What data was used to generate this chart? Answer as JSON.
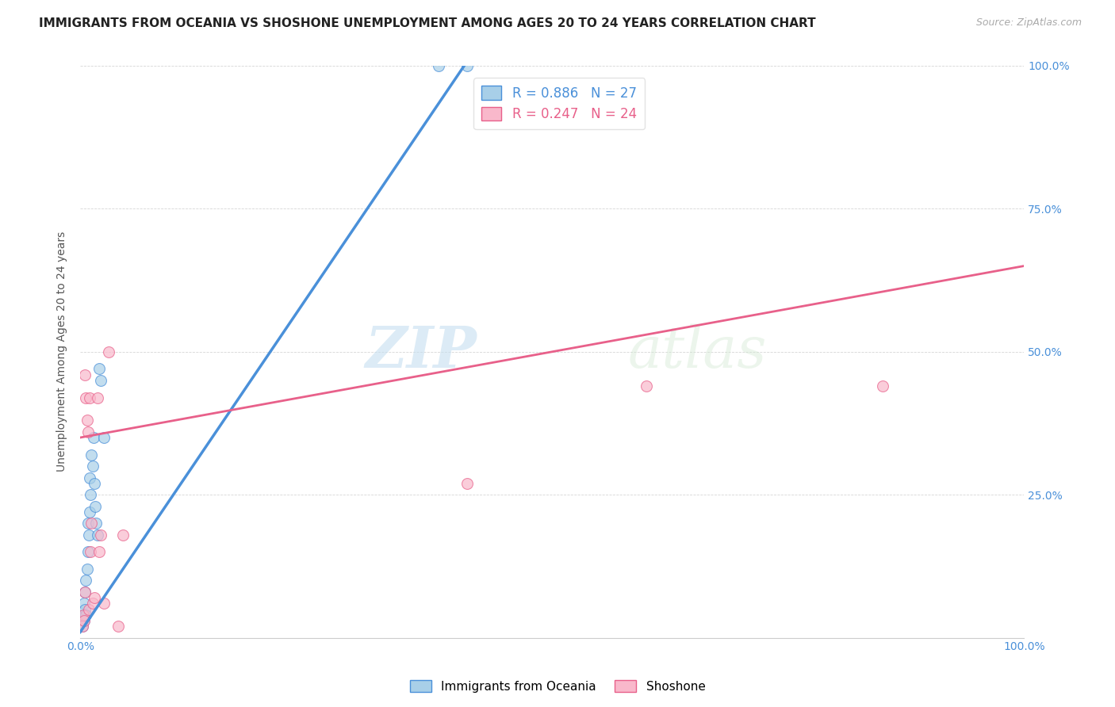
{
  "title": "IMMIGRANTS FROM OCEANIA VS SHOSHONE UNEMPLOYMENT AMONG AGES 20 TO 24 YEARS CORRELATION CHART",
  "source": "Source: ZipAtlas.com",
  "ylabel": "Unemployment Among Ages 20 to 24 years",
  "xlim": [
    0,
    1.0
  ],
  "ylim": [
    0,
    1.0
  ],
  "xtick_labels": [
    "0.0%",
    "",
    "",
    "",
    "",
    "100.0%"
  ],
  "xtick_positions": [
    0,
    0.2,
    0.4,
    0.6,
    0.8,
    1.0
  ],
  "ytick_labels_right": [
    "",
    "25.0%",
    "50.0%",
    "75.0%",
    "100.0%"
  ],
  "ytick_positions": [
    0,
    0.25,
    0.5,
    0.75,
    1.0
  ],
  "blue_color": "#a8cfe8",
  "pink_color": "#f9b8cb",
  "blue_line_color": "#4a90d9",
  "pink_line_color": "#e8608a",
  "legend_R_blue": "R = 0.886",
  "legend_N_blue": "N = 27",
  "legend_R_pink": "R = 0.247",
  "legend_N_pink": "N = 24",
  "watermark_zip": "ZIP",
  "watermark_atlas": "atlas",
  "blue_scatter_x": [
    0.002,
    0.003,
    0.004,
    0.004,
    0.005,
    0.005,
    0.006,
    0.006,
    0.007,
    0.008,
    0.008,
    0.009,
    0.01,
    0.01,
    0.011,
    0.012,
    0.013,
    0.014,
    0.015,
    0.016,
    0.017,
    0.018,
    0.02,
    0.022,
    0.025,
    0.38,
    0.41
  ],
  "blue_scatter_y": [
    0.02,
    0.04,
    0.03,
    0.06,
    0.05,
    0.08,
    0.04,
    0.1,
    0.12,
    0.15,
    0.2,
    0.18,
    0.22,
    0.28,
    0.25,
    0.32,
    0.3,
    0.35,
    0.27,
    0.23,
    0.2,
    0.18,
    0.47,
    0.45,
    0.35,
    1.0,
    1.0
  ],
  "pink_scatter_x": [
    0.002,
    0.003,
    0.004,
    0.005,
    0.006,
    0.007,
    0.008,
    0.009,
    0.01,
    0.011,
    0.012,
    0.013,
    0.015,
    0.018,
    0.02,
    0.022,
    0.025,
    0.03,
    0.04,
    0.045,
    0.6,
    0.85,
    0.41,
    0.005
  ],
  "pink_scatter_y": [
    0.02,
    0.04,
    0.03,
    0.46,
    0.42,
    0.38,
    0.36,
    0.05,
    0.42,
    0.15,
    0.2,
    0.06,
    0.07,
    0.42,
    0.15,
    0.18,
    0.06,
    0.5,
    0.02,
    0.18,
    0.44,
    0.44,
    0.27,
    0.08
  ],
  "blue_line_x": [
    0.0,
    0.415
  ],
  "blue_line_y": [
    0.01,
    1.02
  ],
  "pink_line_x": [
    0.0,
    1.0
  ],
  "pink_line_y": [
    0.35,
    0.65
  ],
  "title_fontsize": 11,
  "axis_label_fontsize": 10,
  "tick_fontsize": 10,
  "legend_fontsize": 12,
  "marker_size": 100
}
